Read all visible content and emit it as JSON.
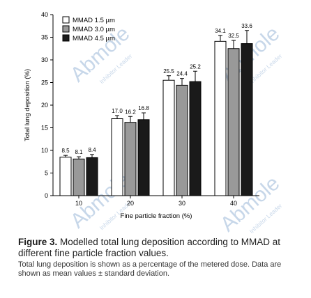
{
  "chart_data": {
    "type": "bar",
    "categories": [
      "10",
      "20",
      "30",
      "40"
    ],
    "series": [
      {
        "name": "MMAD 1.5 µm",
        "color": "#ffffff",
        "values": [
          8.5,
          17.0,
          25.5,
          34.1
        ],
        "errors": [
          0.4,
          0.7,
          1.0,
          1.3
        ]
      },
      {
        "name": "MMAD 3.0 µm",
        "color": "#999999",
        "values": [
          8.1,
          16.2,
          24.4,
          32.5
        ],
        "errors": [
          0.5,
          1.3,
          1.5,
          1.8
        ]
      },
      {
        "name": "MMAD 4.5 µm",
        "color": "#1a1a1a",
        "values": [
          8.4,
          16.8,
          25.2,
          33.6
        ],
        "errors": [
          0.7,
          1.5,
          2.3,
          2.9
        ]
      }
    ],
    "data_labels": [
      [
        "8.5",
        "17.0",
        "25.5",
        "34.1"
      ],
      [
        "8.1",
        "16.2",
        "24.4",
        "32.5"
      ],
      [
        "8.4",
        "16.8",
        "25.2",
        "33.6"
      ]
    ],
    "xlabel": "Fine particle fraction (%)",
    "ylabel": "Total lung deposition (%)",
    "ylim": [
      0,
      40
    ],
    "yticks": [
      0,
      5,
      10,
      15,
      20,
      25,
      30,
      35,
      40
    ],
    "legend_position": "top-left",
    "grid": false
  },
  "caption": {
    "label": "Figure 3.",
    "title": "Modelled total lung deposition according to MMAD at different fine particle fraction values.",
    "description": "Total lung deposition is shown as a percentage of the metered dose. Data are shown as mean values ± standard deviation."
  },
  "watermarks": [
    {
      "brand": "Abmole",
      "tagline": "Inhibitor Leader"
    },
    {
      "brand": "Abmole",
      "tagline": "Inhibitor Leader"
    },
    {
      "brand": "Abmole",
      "tagline": "Inhibitor Leader"
    },
    {
      "brand": "Abmole",
      "tagline": "Inhibitor Leader"
    }
  ]
}
